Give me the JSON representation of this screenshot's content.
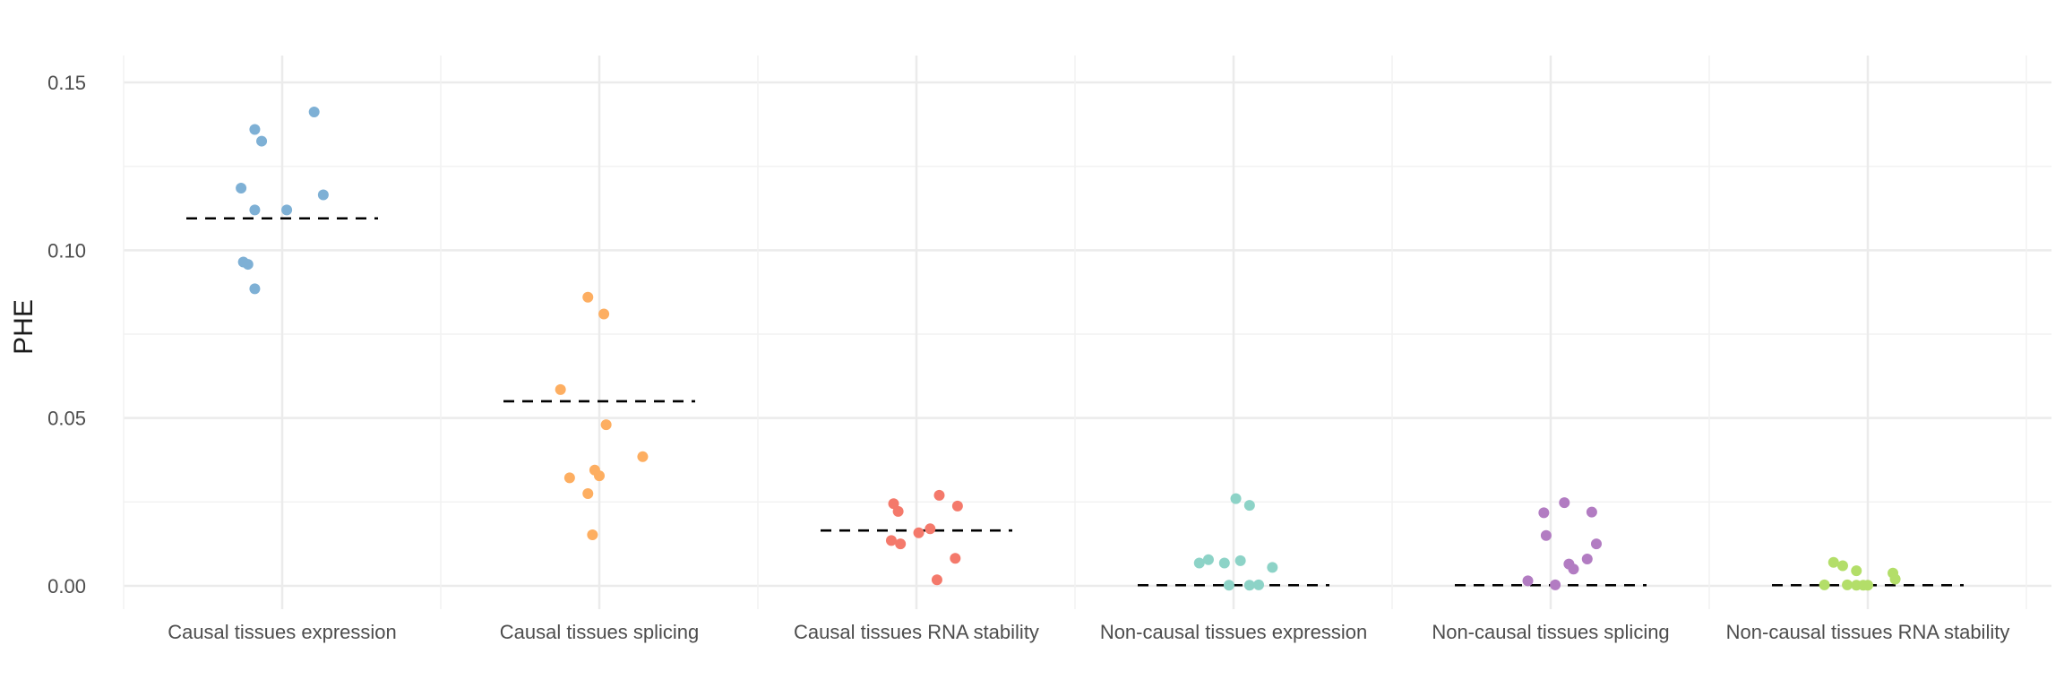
{
  "chart_data": {
    "type": "scatter",
    "subtype": "jitter-strip-with-mean-lines",
    "title": "",
    "xlabel": "",
    "ylabel": "PHE",
    "ylim": [
      -0.007,
      0.16
    ],
    "yticks": [
      0.0,
      0.05,
      0.1,
      0.15
    ],
    "ytick_labels": [
      "0.00",
      "0.05",
      "0.10",
      "0.15"
    ],
    "grid": true,
    "legend": "none",
    "categories": [
      "Causal tissues expression",
      "Causal tissues splicing",
      "Causal tissues RNA stability",
      "Non-causal tissues expression",
      "Non-causal tissues splicing",
      "Non-causal tissues RNA stability"
    ],
    "series": [
      {
        "name": "Causal tissues expression",
        "color": "#7EB0D5",
        "mean": 0.1095,
        "points": [
          {
            "dx": -0.18,
            "y": 0.1185
          },
          {
            "dx": -0.12,
            "y": 0.136
          },
          {
            "dx": -0.09,
            "y": 0.1325
          },
          {
            "dx": 0.14,
            "y": 0.1412
          },
          {
            "dx": 0.18,
            "y": 0.1165
          },
          {
            "dx": -0.12,
            "y": 0.112
          },
          {
            "dx": 0.02,
            "y": 0.112
          },
          {
            "dx": -0.17,
            "y": 0.0965
          },
          {
            "dx": -0.15,
            "y": 0.0958
          },
          {
            "dx": -0.12,
            "y": 0.0885
          }
        ]
      },
      {
        "name": "Causal tissues splicing",
        "color": "#FDAE61",
        "mean": 0.055,
        "points": [
          {
            "dx": -0.05,
            "y": 0.086
          },
          {
            "dx": 0.02,
            "y": 0.081
          },
          {
            "dx": -0.17,
            "y": 0.0585
          },
          {
            "dx": 0.03,
            "y": 0.048
          },
          {
            "dx": 0.19,
            "y": 0.0385
          },
          {
            "dx": -0.02,
            "y": 0.0345
          },
          {
            "dx": 0.0,
            "y": 0.0328
          },
          {
            "dx": -0.13,
            "y": 0.0322
          },
          {
            "dx": -0.05,
            "y": 0.0275
          },
          {
            "dx": -0.03,
            "y": 0.0152
          }
        ]
      },
      {
        "name": "Causal tissues RNA stability",
        "color": "#F4796B",
        "mean": 0.0165,
        "points": [
          {
            "dx": -0.1,
            "y": 0.0245
          },
          {
            "dx": -0.08,
            "y": 0.0222
          },
          {
            "dx": 0.1,
            "y": 0.027
          },
          {
            "dx": 0.18,
            "y": 0.0238
          },
          {
            "dx": -0.11,
            "y": 0.0135
          },
          {
            "dx": -0.07,
            "y": 0.0125
          },
          {
            "dx": 0.01,
            "y": 0.0158
          },
          {
            "dx": 0.06,
            "y": 0.017
          },
          {
            "dx": 0.17,
            "y": 0.0082
          },
          {
            "dx": 0.09,
            "y": 0.0018
          }
        ]
      },
      {
        "name": "Non-causal tissues expression",
        "color": "#8DD3C7",
        "mean": 0.0002,
        "points": [
          {
            "dx": 0.01,
            "y": 0.026
          },
          {
            "dx": 0.07,
            "y": 0.024
          },
          {
            "dx": -0.15,
            "y": 0.0068
          },
          {
            "dx": -0.11,
            "y": 0.0078
          },
          {
            "dx": -0.04,
            "y": 0.0068
          },
          {
            "dx": 0.03,
            "y": 0.0075
          },
          {
            "dx": 0.17,
            "y": 0.0055
          },
          {
            "dx": -0.02,
            "y": 0.0002
          },
          {
            "dx": 0.07,
            "y": 0.0002
          },
          {
            "dx": 0.11,
            "y": 0.0003
          }
        ]
      },
      {
        "name": "Non-causal tissues splicing",
        "color": "#B27CC2",
        "mean": 0.0002,
        "points": [
          {
            "dx": -0.03,
            "y": 0.0218
          },
          {
            "dx": 0.06,
            "y": 0.0248
          },
          {
            "dx": 0.18,
            "y": 0.022
          },
          {
            "dx": -0.02,
            "y": 0.015
          },
          {
            "dx": 0.2,
            "y": 0.0125
          },
          {
            "dx": 0.16,
            "y": 0.008
          },
          {
            "dx": 0.08,
            "y": 0.0065
          },
          {
            "dx": 0.1,
            "y": 0.005
          },
          {
            "dx": -0.1,
            "y": 0.0015
          },
          {
            "dx": 0.02,
            "y": 0.0003
          }
        ]
      },
      {
        "name": "Non-causal tissues RNA stability",
        "color": "#B3DE69",
        "mean": 0.0002,
        "points": [
          {
            "dx": -0.15,
            "y": 0.007
          },
          {
            "dx": -0.11,
            "y": 0.006
          },
          {
            "dx": -0.05,
            "y": 0.0045
          },
          {
            "dx": 0.11,
            "y": 0.0038
          },
          {
            "dx": 0.12,
            "y": 0.002
          },
          {
            "dx": -0.19,
            "y": 0.0003
          },
          {
            "dx": -0.09,
            "y": 0.0003
          },
          {
            "dx": -0.05,
            "y": 0.0002
          },
          {
            "dx": -0.02,
            "y": 0.0002
          },
          {
            "dx": 0.0,
            "y": 0.0002
          }
        ]
      }
    ]
  }
}
